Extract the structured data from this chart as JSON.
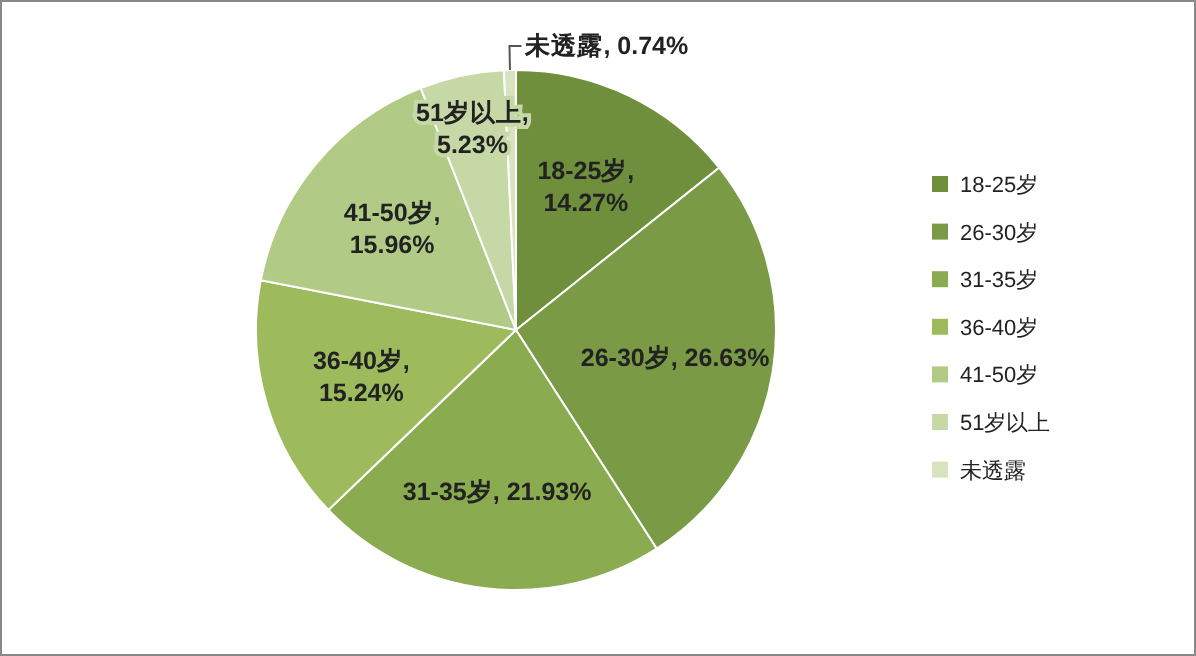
{
  "chart_data": {
    "type": "pie",
    "categories": [
      "18-25岁",
      "26-30岁",
      "31-35岁",
      "36-40岁",
      "41-50岁",
      "51岁以上",
      "未透露"
    ],
    "values": [
      14.27,
      26.63,
      21.93,
      15.24,
      15.96,
      5.23,
      0.74
    ],
    "colors": [
      "#6f8f3c",
      "#7a9a45",
      "#8aab4f",
      "#9dbb5c",
      "#b1cb86",
      "#c6d8a6",
      "#d8e4c0"
    ],
    "value_labels": [
      "18-25岁,\n14.27%",
      "26-30岁, 26.63%",
      "31-35岁, 21.93%",
      "36-40岁,\n15.24%",
      "41-50岁,\n15.96%",
      "51岁以上,\n5.23%",
      "未透露, 0.74%"
    ],
    "legend": "right"
  }
}
